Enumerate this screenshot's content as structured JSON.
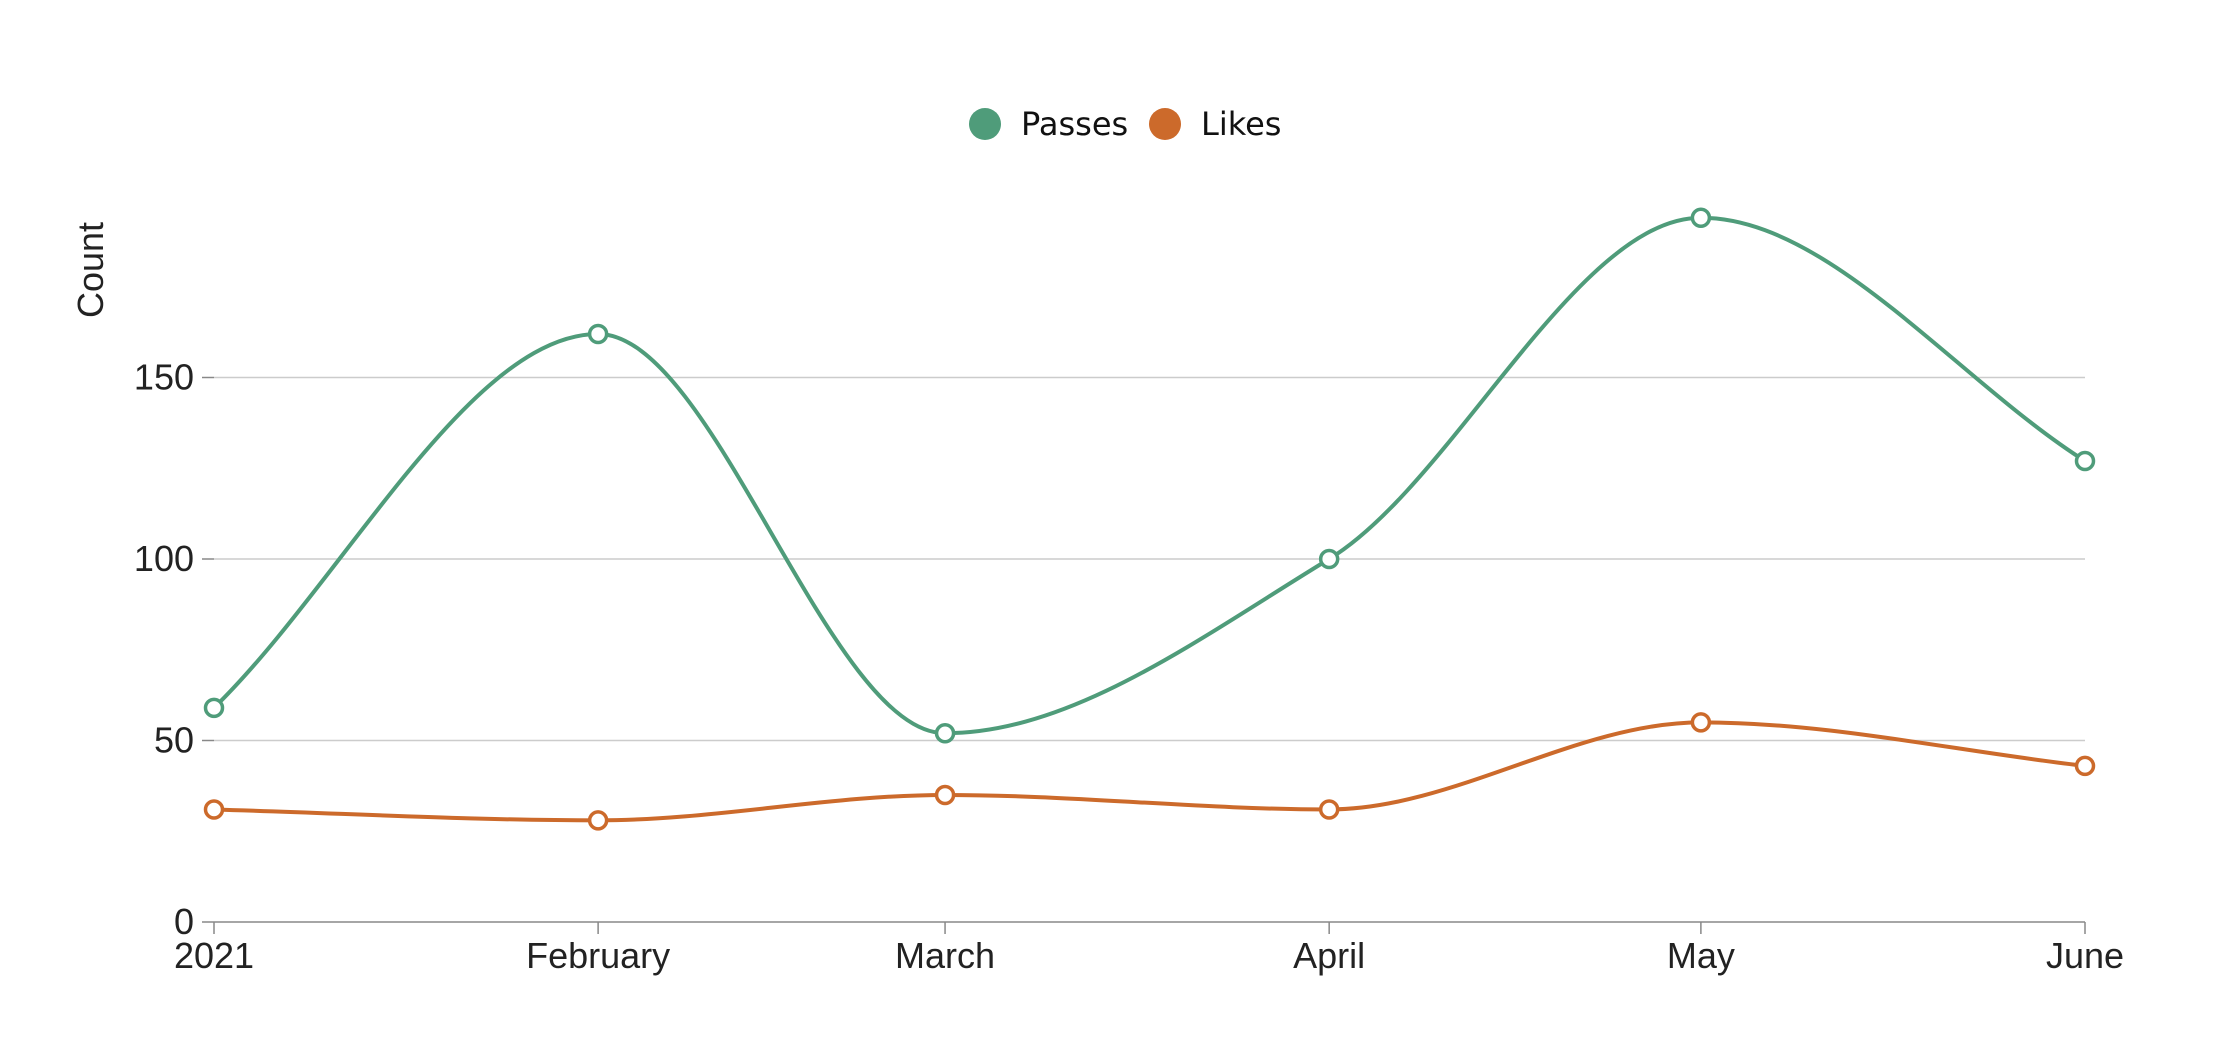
{
  "chart_data": {
    "type": "line",
    "curve": "smooth",
    "categories": [
      "2021",
      "February",
      "March",
      "April",
      "May",
      "June"
    ],
    "x_dates": [
      "2021-01-01",
      "2021-02-01",
      "2021-03-01",
      "2021-04-01",
      "2021-05-01",
      "2021-06-01"
    ],
    "series": [
      {
        "name": "Passes",
        "color": "#4f9c7a",
        "values": [
          59,
          162,
          52,
          100,
          194,
          127
        ]
      },
      {
        "name": "Likes",
        "color": "#cc6a2b",
        "values": [
          31,
          28,
          35,
          31,
          55,
          43
        ]
      }
    ],
    "xlabel": "",
    "ylabel": "Count",
    "ylim": [
      0,
      200
    ],
    "yticks": [
      0,
      50,
      100,
      150
    ],
    "grid": true,
    "legend": "top-center",
    "markers": "hollow-circle"
  }
}
